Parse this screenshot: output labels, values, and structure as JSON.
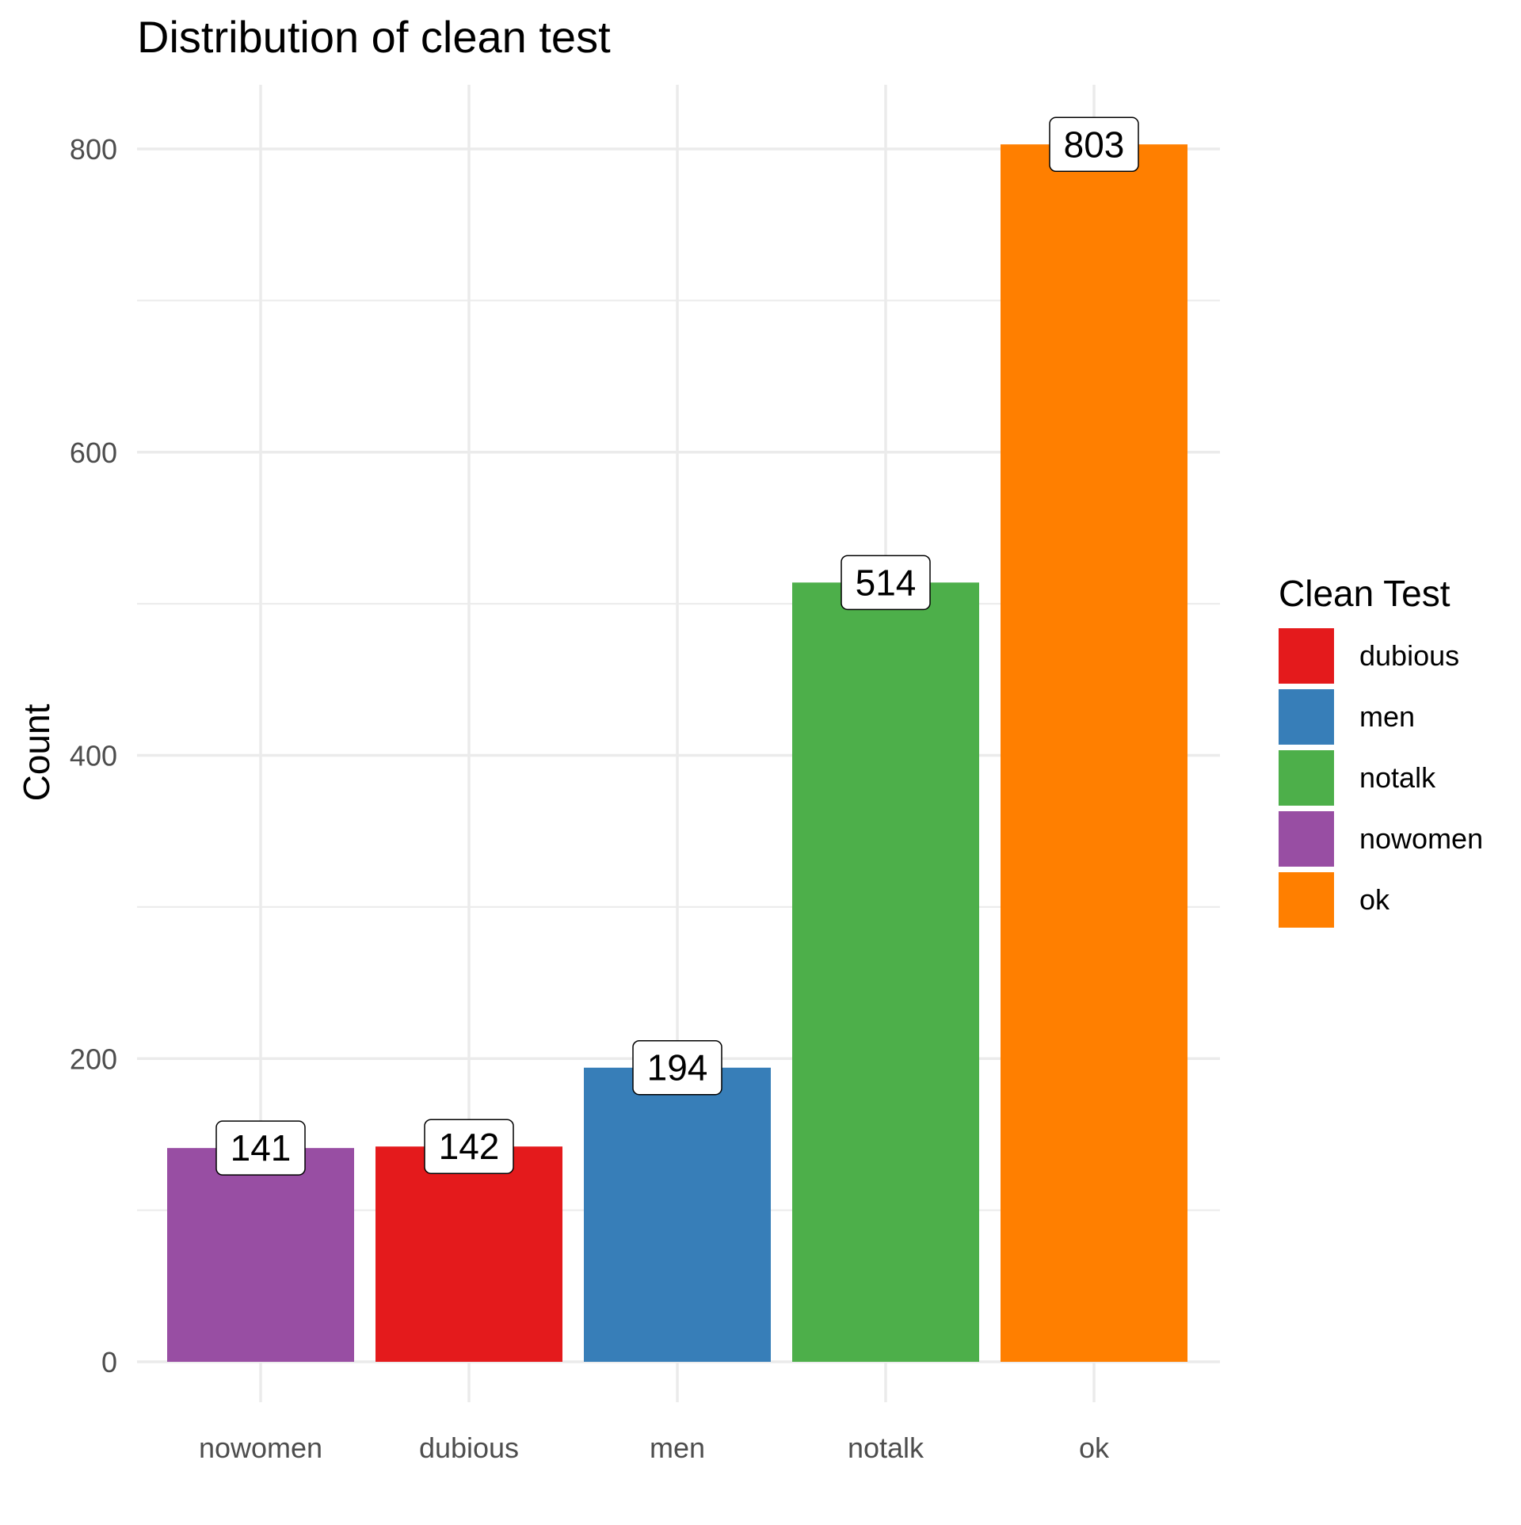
{
  "chart_data": {
    "type": "bar",
    "title": "Distribution of clean test",
    "xlabel": "",
    "ylabel": "Count",
    "categories": [
      "nowomen",
      "dubious",
      "men",
      "notalk",
      "ok"
    ],
    "values": [
      141,
      142,
      194,
      514,
      803
    ],
    "bar_colors": [
      "#984EA3",
      "#E41A1C",
      "#377EB8",
      "#4DAF4A",
      "#FF7F00"
    ],
    "data_labels": [
      "141",
      "142",
      "194",
      "514",
      "803"
    ],
    "ylim": [
      0,
      800
    ],
    "yticks": [
      0,
      200,
      400,
      600,
      800
    ],
    "ytick_labels": [
      "0",
      "200",
      "400",
      "600",
      "800"
    ],
    "grid": true,
    "legend": {
      "title": "Clean Test",
      "placement": "right",
      "items": [
        {
          "label": "dubious",
          "color": "#E41A1C"
        },
        {
          "label": "men",
          "color": "#377EB8"
        },
        {
          "label": "notalk",
          "color": "#4DAF4A"
        },
        {
          "label": "nowomen",
          "color": "#984EA3"
        },
        {
          "label": "ok",
          "color": "#FF7F00"
        }
      ]
    }
  }
}
